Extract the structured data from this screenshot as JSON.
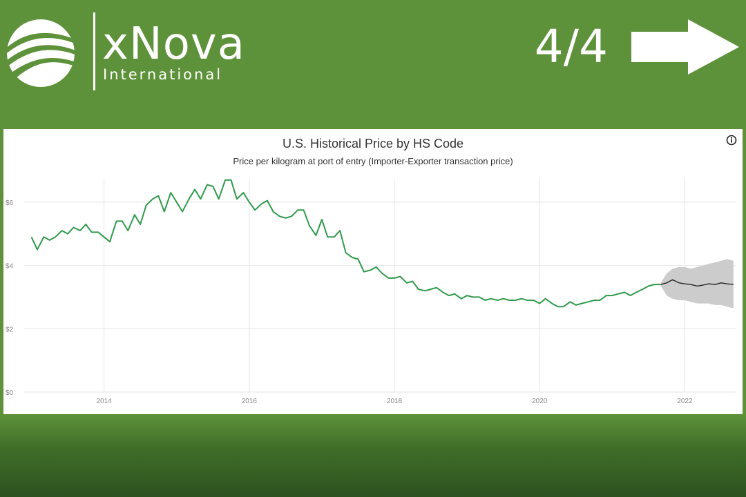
{
  "brand": {
    "name": "xNova",
    "subtitle": "International"
  },
  "nav": {
    "page_counter": "4/4"
  },
  "colors": {
    "background": "#5e923a",
    "series_actual": "#2e9a4a",
    "series_forecast": "#222222",
    "band": "#cccccc"
  },
  "icons": {
    "logo": "xnova-logo-icon",
    "next": "right-arrow-icon",
    "info": "info-icon"
  },
  "chart_data": {
    "type": "line",
    "title": "U.S. Historical Price by HS Code",
    "subtitle": "Price per kilogram at port of entry (Importer-Exporter transaction price)",
    "xlabel": "",
    "ylabel": "",
    "x_ticks": [
      "2014",
      "2016",
      "2018",
      "2020",
      "2022"
    ],
    "y_ticks": [
      "$0",
      "$2",
      "$4",
      "$6"
    ],
    "xlim": [
      2012.9,
      2022.7
    ],
    "ylim": [
      0,
      7
    ],
    "grid": true,
    "legend": "none",
    "series": [
      {
        "kind": "actual",
        "x": [
          2013.0,
          2013.08,
          2013.17,
          2013.25,
          2013.33,
          2013.42,
          2013.5,
          2013.58,
          2013.67,
          2013.75,
          2013.83,
          2013.92,
          2014.0,
          2014.08,
          2014.17,
          2014.25,
          2014.33,
          2014.42,
          2014.5,
          2014.58,
          2014.67,
          2014.75,
          2014.83,
          2014.92,
          2015.0,
          2015.08,
          2015.17,
          2015.25,
          2015.33,
          2015.42,
          2015.5,
          2015.58,
          2015.67,
          2015.75,
          2015.83,
          2015.92,
          2016.0,
          2016.08,
          2016.17,
          2016.25,
          2016.33,
          2016.42,
          2016.5,
          2016.58,
          2016.67,
          2016.75,
          2016.83,
          2016.92,
          2017.0,
          2017.08,
          2017.17,
          2017.25,
          2017.33,
          2017.42,
          2017.5,
          2017.58,
          2017.67,
          2017.75,
          2017.83,
          2017.92,
          2018.0,
          2018.08,
          2018.17,
          2018.25,
          2018.33,
          2018.42,
          2018.5,
          2018.58,
          2018.67,
          2018.75,
          2018.83,
          2018.92,
          2019.0,
          2019.08,
          2019.17,
          2019.25,
          2019.33,
          2019.42,
          2019.5,
          2019.58,
          2019.67,
          2019.75,
          2019.83,
          2019.92,
          2020.0,
          2020.08,
          2020.17,
          2020.25,
          2020.33,
          2020.42,
          2020.5,
          2020.58,
          2020.67,
          2020.75,
          2020.83,
          2020.92,
          2021.0,
          2021.08,
          2021.17,
          2021.25,
          2021.33,
          2021.42,
          2021.5,
          2021.58,
          2021.67
        ],
        "y": [
          4.9,
          4.5,
          4.9,
          4.8,
          4.9,
          5.1,
          5.0,
          5.2,
          5.1,
          5.3,
          5.05,
          5.05,
          4.9,
          4.75,
          5.4,
          5.4,
          5.1,
          5.6,
          5.3,
          5.9,
          6.1,
          6.2,
          5.7,
          6.3,
          6.0,
          5.7,
          6.1,
          6.4,
          6.1,
          6.55,
          6.5,
          6.1,
          6.7,
          6.7,
          6.1,
          6.3,
          6.0,
          5.75,
          5.95,
          6.05,
          5.7,
          5.55,
          5.5,
          5.55,
          5.75,
          5.75,
          5.25,
          4.95,
          5.45,
          4.9,
          4.9,
          5.1,
          4.4,
          4.25,
          4.2,
          3.8,
          3.85,
          3.95,
          3.75,
          3.6,
          3.6,
          3.65,
          3.45,
          3.5,
          3.25,
          3.2,
          3.25,
          3.3,
          3.15,
          3.05,
          3.1,
          2.95,
          3.05,
          3.0,
          3.0,
          2.9,
          2.95,
          2.9,
          2.95,
          2.9,
          2.9,
          2.95,
          2.9,
          2.9,
          2.8,
          2.95,
          2.8,
          2.7,
          2.7,
          2.85,
          2.75,
          2.8,
          2.85,
          2.9,
          2.9,
          3.05,
          3.05,
          3.1,
          3.15,
          3.05,
          3.15,
          3.25,
          3.35,
          3.4,
          3.4
        ]
      },
      {
        "kind": "forecast",
        "x": [
          2021.67,
          2021.75,
          2021.83,
          2021.92,
          2022.0,
          2022.08,
          2022.17,
          2022.25,
          2022.33,
          2022.42,
          2022.5,
          2022.58,
          2022.67
        ],
        "y": [
          3.4,
          3.45,
          3.55,
          3.45,
          3.42,
          3.4,
          3.35,
          3.38,
          3.42,
          3.4,
          3.45,
          3.42,
          3.4
        ],
        "lower": [
          3.35,
          3.05,
          2.95,
          2.9,
          2.9,
          2.85,
          2.8,
          2.8,
          2.8,
          2.75,
          2.75,
          2.7,
          2.65
        ],
        "upper": [
          3.45,
          3.75,
          3.9,
          3.95,
          3.95,
          3.9,
          3.95,
          4.0,
          4.05,
          4.1,
          4.15,
          4.2,
          4.15
        ]
      }
    ]
  }
}
